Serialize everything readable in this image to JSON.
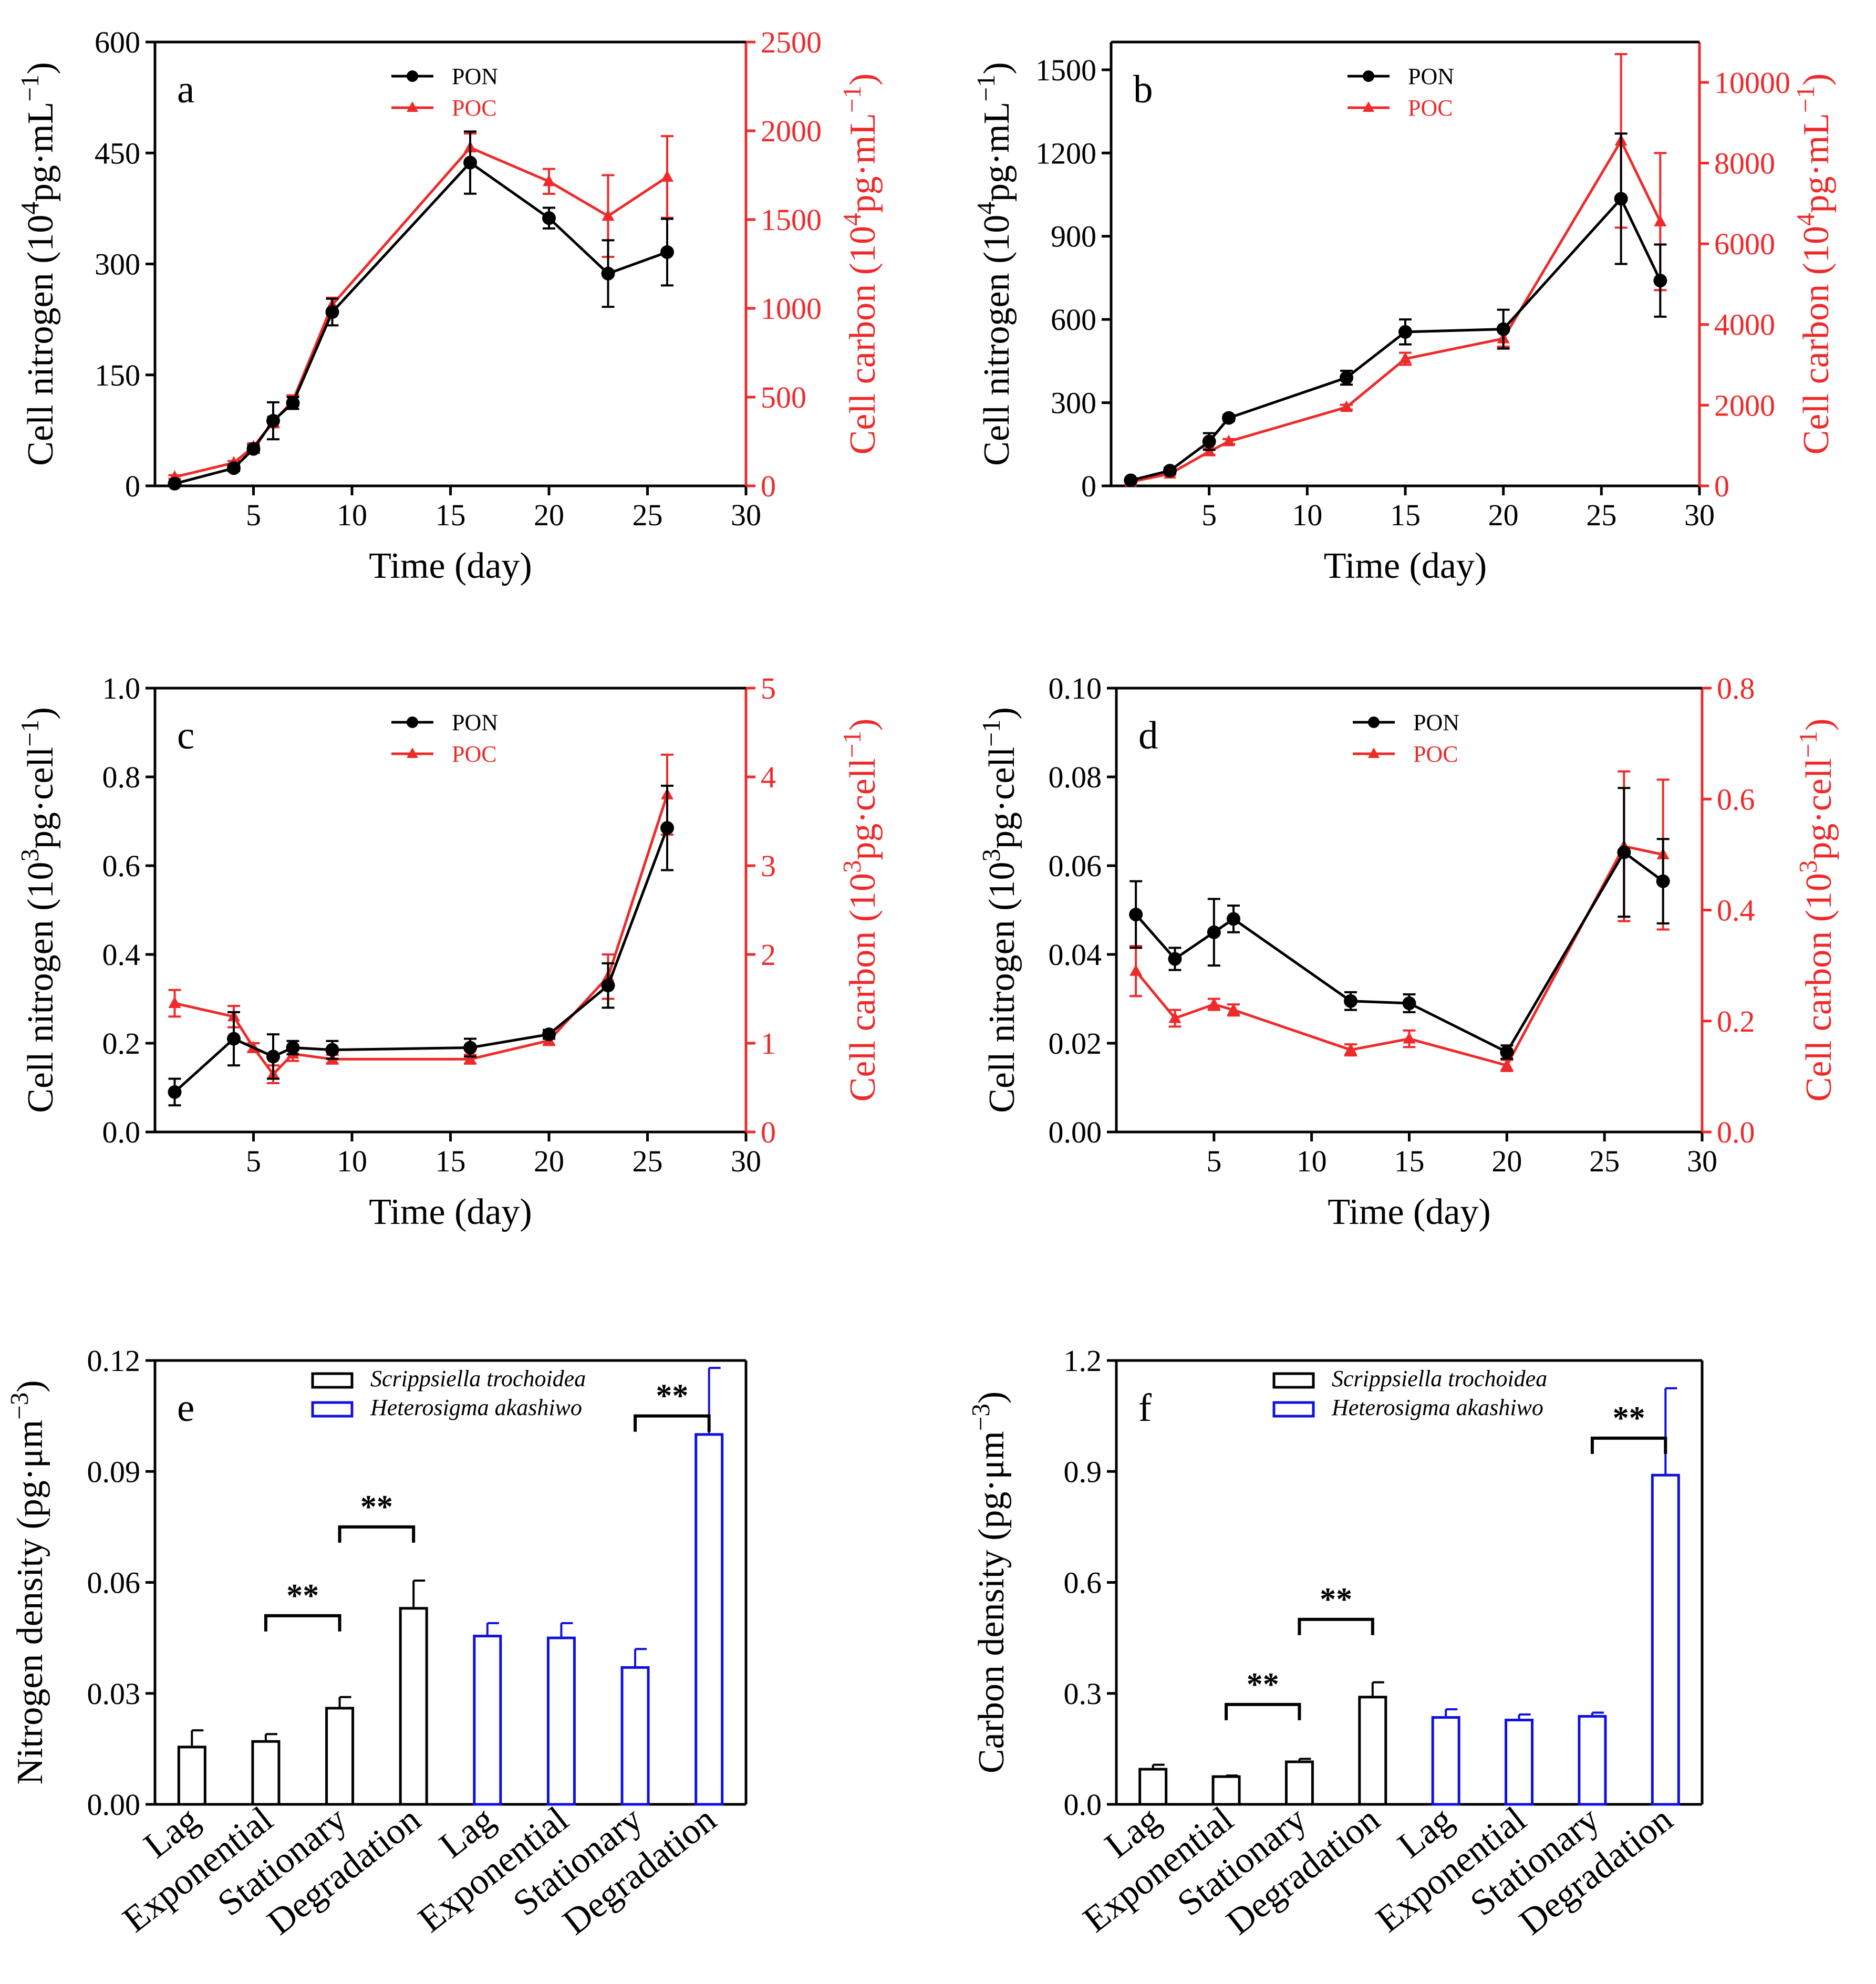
{
  "figure": {
    "x_axis_title": "Time (day)",
    "legend_pon": "PON",
    "legend_poc": "POC",
    "species_1": "Scrippsiella trochoidea",
    "species_2": "Heterosigma akashiwo",
    "significance_label": "**",
    "colors": {
      "pon": "#000000",
      "poc": "#ee2a2a",
      "species_1": "#000000",
      "species_2": "#1010e0"
    }
  },
  "chart_data": [
    {
      "panel": "a",
      "type": "line",
      "xlabel": "Time (day)",
      "ylabel": "Cell nitrogen (10⁴pg·mL⁻¹)",
      "y2label": "Cell carbon (10⁴pg·mL⁻¹)",
      "xlim": [
        0,
        30
      ],
      "xticks": [
        5,
        10,
        15,
        20,
        25,
        30
      ],
      "ylim": [
        0,
        600
      ],
      "yticks": [
        0,
        150,
        300,
        450,
        600
      ],
      "ytick_labels": [
        "0",
        "150",
        "300",
        "450",
        "600"
      ],
      "y2lim": [
        0,
        2500
      ],
      "y2ticks": [
        0,
        500,
        1000,
        1500,
        2000,
        2500
      ],
      "y2tick_labels": [
        "0",
        "500",
        "1000",
        "1500",
        "2000",
        "2500"
      ],
      "legend_position": "top-center",
      "series": [
        {
          "name": "PON",
          "axis": "left",
          "marker": "circle",
          "x": [
            1,
            4,
            5,
            6,
            7,
            9,
            16,
            20,
            23,
            26
          ],
          "y": [
            3,
            24,
            50,
            88,
            112,
            235,
            437,
            362,
            287,
            316
          ],
          "err": [
            2,
            4,
            5,
            25,
            8,
            18,
            42,
            14,
            45,
            45
          ]
        },
        {
          "name": "POC",
          "axis": "right",
          "marker": "triangle",
          "x": [
            1,
            4,
            5,
            6,
            7,
            9,
            16,
            20,
            23,
            26
          ],
          "y": [
            50,
            130,
            220,
            360,
            480,
            1020,
            1905,
            1715,
            1520,
            1740
          ],
          "err": [
            10,
            10,
            20,
            30,
            30,
            40,
            80,
            70,
            230,
            230
          ]
        }
      ]
    },
    {
      "panel": "b",
      "type": "line",
      "xlabel": "Time (day)",
      "ylabel": "Cell nitrogen (10⁴pg·mL⁻¹)",
      "y2label": "Cell carbon (10⁴pg·mL⁻¹)",
      "xlim": [
        0,
        30
      ],
      "xticks": [
        5,
        10,
        15,
        20,
        25,
        30
      ],
      "ylim": [
        0,
        1600
      ],
      "yticks": [
        0,
        300,
        600,
        900,
        1200,
        1500
      ],
      "ytick_labels": [
        "0",
        "300",
        "600",
        "900",
        "1200",
        "1500"
      ],
      "y2lim": [
        0,
        11000
      ],
      "y2ticks": [
        0,
        2000,
        4000,
        6000,
        8000,
        10000
      ],
      "y2tick_labels": [
        "0",
        "2000",
        "4000",
        "6000",
        "8000",
        "10000"
      ],
      "legend_position": "top-center",
      "series": [
        {
          "name": "PON",
          "axis": "left",
          "marker": "circle",
          "x": [
            1,
            3,
            5,
            6,
            12,
            15,
            20,
            26,
            28
          ],
          "y": [
            20,
            55,
            160,
            245,
            390,
            555,
            565,
            1035,
            740
          ],
          "err": [
            5,
            10,
            30,
            10,
            25,
            45,
            70,
            235,
            130
          ]
        },
        {
          "name": "POC",
          "axis": "right",
          "marker": "triangle",
          "x": [
            1,
            3,
            5,
            6,
            12,
            15,
            20,
            26,
            28
          ],
          "y": [
            100,
            300,
            850,
            1100,
            1950,
            3150,
            3650,
            8550,
            6550
          ],
          "err": [
            20,
            30,
            80,
            60,
            60,
            150,
            200,
            2150,
            1700
          ]
        }
      ]
    },
    {
      "panel": "c",
      "type": "line",
      "xlabel": "Time (day)",
      "ylabel": "Cell nitrogen (10³pg·cell⁻¹)",
      "y2label": "Cell carbon (10³pg·cell⁻¹)",
      "xlim": [
        0,
        30
      ],
      "xticks": [
        5,
        10,
        15,
        20,
        25,
        30
      ],
      "ylim": [
        0,
        1.0
      ],
      "yticks": [
        0,
        0.2,
        0.4,
        0.6,
        0.8,
        1.0
      ],
      "ytick_labels": [
        "0.0",
        "0.2",
        "0.4",
        "0.6",
        "0.8",
        "1.0"
      ],
      "y2lim": [
        0,
        5
      ],
      "y2ticks": [
        0,
        1,
        2,
        3,
        4,
        5
      ],
      "y2tick_labels": [
        "0",
        "1",
        "2",
        "3",
        "4",
        "5"
      ],
      "legend_position": "top-center",
      "series": [
        {
          "name": "PON",
          "axis": "left",
          "marker": "circle",
          "x": [
            1,
            4,
            6,
            7,
            9,
            16,
            20,
            23,
            26
          ],
          "y": [
            0.09,
            0.21,
            0.17,
            0.19,
            0.185,
            0.19,
            0.22,
            0.33,
            0.685
          ],
          "err": [
            0.03,
            0.06,
            0.05,
            0.015,
            0.02,
            0.02,
            0.01,
            0.05,
            0.095
          ]
        },
        {
          "name": "POC",
          "axis": "right",
          "marker": "triangle",
          "x": [
            1,
            4,
            5,
            6,
            7,
            9,
            16,
            20,
            23,
            26
          ],
          "y": [
            1.45,
            1.3,
            0.95,
            0.65,
            0.88,
            0.82,
            0.82,
            1.03,
            1.75,
            3.8
          ],
          "err": [
            0.15,
            0.12,
            0.05,
            0.1,
            0.08,
            0.05,
            0.05,
            0.05,
            0.25,
            0.45
          ]
        }
      ]
    },
    {
      "panel": "d",
      "type": "line",
      "xlabel": "Time (day)",
      "ylabel": "Cell nitrogen (10³pg·cell⁻¹)",
      "y2label": "Cell carbon (10³pg·cell⁻¹)",
      "xlim": [
        0,
        30
      ],
      "xticks": [
        5,
        10,
        15,
        20,
        25,
        30
      ],
      "ylim": [
        0,
        0.1
      ],
      "yticks": [
        0,
        0.02,
        0.04,
        0.06,
        0.08,
        0.1
      ],
      "ytick_labels": [
        "0.00",
        "0.02",
        "0.04",
        "0.06",
        "0.08",
        "0.10"
      ],
      "y2lim": [
        0,
        0.8
      ],
      "y2ticks": [
        0,
        0.2,
        0.4,
        0.6,
        0.8
      ],
      "y2tick_labels": [
        "0.0",
        "0.2",
        "0.4",
        "0.6",
        "0.8"
      ],
      "legend_position": "top-center",
      "series": [
        {
          "name": "PON",
          "axis": "left",
          "marker": "circle",
          "x": [
            1,
            3,
            5,
            6,
            12,
            15,
            20,
            26,
            28
          ],
          "y": [
            0.049,
            0.039,
            0.045,
            0.048,
            0.0295,
            0.029,
            0.018,
            0.063,
            0.0565
          ],
          "err": [
            0.0075,
            0.0025,
            0.0075,
            0.003,
            0.002,
            0.002,
            0.0015,
            0.0145,
            0.0095
          ]
        },
        {
          "name": "POC",
          "axis": "right",
          "marker": "triangle",
          "x": [
            1,
            3,
            5,
            6,
            12,
            15,
            20,
            26,
            28
          ],
          "y": [
            0.29,
            0.205,
            0.23,
            0.22,
            0.148,
            0.168,
            0.12,
            0.515,
            0.5
          ],
          "err": [
            0.045,
            0.015,
            0.01,
            0.01,
            0.01,
            0.015,
            0.01,
            0.135,
            0.135
          ]
        }
      ]
    },
    {
      "panel": "e",
      "type": "bar",
      "ylabel": "Nitrogen density (pg·μm⁻³)",
      "categories": [
        "Lag",
        "Exponential",
        "Stationary",
        "Degradation",
        "Lag",
        "Exponential",
        "Stationary",
        "Degradation"
      ],
      "groups": [
        "Scrippsiella trochoidea",
        "Scrippsiella trochoidea",
        "Scrippsiella trochoidea",
        "Scrippsiella trochoidea",
        "Heterosigma akashiwo",
        "Heterosigma akashiwo",
        "Heterosigma akashiwo",
        "Heterosigma akashiwo"
      ],
      "values": [
        0.0155,
        0.017,
        0.026,
        0.053,
        0.0455,
        0.045,
        0.037,
        0.1
      ],
      "err": [
        0.0045,
        0.002,
        0.003,
        0.0075,
        0.0035,
        0.004,
        0.005,
        0.018
      ],
      "ylim": [
        0,
        0.12
      ],
      "yticks": [
        0,
        0.03,
        0.06,
        0.09,
        0.12
      ],
      "ytick_labels": [
        "0.00",
        "0.03",
        "0.06",
        "0.09",
        "0.12"
      ],
      "legend_position": "top-center",
      "significance": [
        {
          "from": 1,
          "to": 2,
          "level": 0.051,
          "label": "**"
        },
        {
          "from": 2,
          "to": 3,
          "level": 0.075,
          "label": "**"
        },
        {
          "from": 6,
          "to": 7,
          "level": 0.105,
          "label": "**"
        }
      ]
    },
    {
      "panel": "f",
      "type": "bar",
      "ylabel": "Carbon density (pg·μm⁻³)",
      "categories": [
        "Lag",
        "Exponential",
        "Stationary",
        "Degradation",
        "Lag",
        "Exponential",
        "Stationary",
        "Degradation"
      ],
      "groups": [
        "Scrippsiella trochoidea",
        "Scrippsiella trochoidea",
        "Scrippsiella trochoidea",
        "Scrippsiella trochoidea",
        "Heterosigma akashiwo",
        "Heterosigma akashiwo",
        "Heterosigma akashiwo",
        "Heterosigma akashiwo"
      ],
      "values": [
        0.095,
        0.075,
        0.115,
        0.29,
        0.235,
        0.228,
        0.238,
        0.89
      ],
      "err": [
        0.012,
        0.003,
        0.008,
        0.04,
        0.022,
        0.015,
        0.01,
        0.235
      ],
      "ylim": [
        0,
        1.2
      ],
      "yticks": [
        0,
        0.3,
        0.6,
        0.9,
        1.2
      ],
      "ytick_labels": [
        "0.0",
        "0.3",
        "0.6",
        "0.9",
        "1.2"
      ],
      "legend_position": "top-center",
      "significance": [
        {
          "from": 1,
          "to": 2,
          "level": 0.27,
          "label": "**"
        },
        {
          "from": 2,
          "to": 3,
          "level": 0.5,
          "label": "**"
        },
        {
          "from": 6,
          "to": 7,
          "level": 0.99,
          "label": "**"
        }
      ]
    }
  ]
}
